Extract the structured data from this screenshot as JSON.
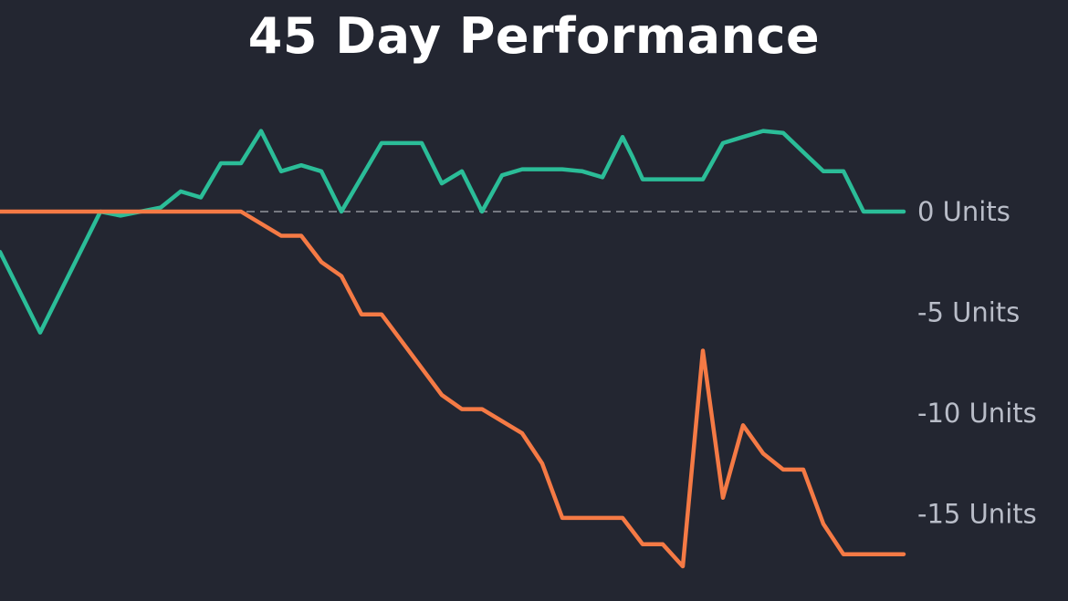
{
  "chart_data": {
    "type": "line",
    "title": "45 Day Performance",
    "xlabel": "",
    "ylabel": "",
    "ylim": [
      -19,
      4.1
    ],
    "xlim": [
      0,
      45
    ],
    "yticks": [
      {
        "value": 0,
        "label": "0 Units"
      },
      {
        "value": -5,
        "label": "-5 Units"
      },
      {
        "value": -10,
        "label": "-10 Units"
      },
      {
        "value": -15,
        "label": "-15 Units"
      }
    ],
    "reference_line": 0,
    "grid": false,
    "legend": "none",
    "series": [
      {
        "color": "#2bbd98",
        "x": [
          0,
          2,
          5,
          6,
          7,
          8,
          9,
          10,
          11,
          12,
          13,
          14,
          15,
          16,
          17,
          19,
          21,
          22,
          23,
          24,
          25,
          26,
          28,
          29,
          30,
          31,
          31.5,
          32,
          35,
          36,
          37,
          38,
          39,
          41,
          42,
          43,
          44,
          45
        ],
        "values": [
          -2.0,
          -6.0,
          0.0,
          -0.2,
          0.0,
          0.2,
          1.0,
          0.7,
          2.4,
          2.4,
          4.0,
          2.0,
          2.3,
          2.0,
          0.0,
          3.4,
          3.4,
          1.4,
          2.0,
          0.0,
          1.8,
          2.1,
          2.1,
          2.0,
          1.7,
          3.7,
          2.7,
          1.6,
          1.6,
          3.4,
          3.7,
          4.0,
          3.9,
          2.0,
          2.0,
          0.0,
          0.0,
          0.0
        ]
      },
      {
        "color": "#f57a45",
        "x": [
          0,
          12,
          14,
          15,
          16,
          17,
          18,
          19,
          22,
          23,
          24,
          26,
          27,
          28,
          29,
          31,
          32,
          33,
          34,
          35,
          36,
          37,
          38,
          39,
          40,
          41,
          42,
          45
        ],
        "values": [
          0.0,
          0.0,
          -1.2,
          -1.2,
          -2.5,
          -3.2,
          -5.1,
          -5.1,
          -9.1,
          -9.8,
          -9.8,
          -11.0,
          -12.5,
          -15.2,
          -15.2,
          -15.2,
          -16.5,
          -16.5,
          -17.6,
          -6.9,
          -14.2,
          -10.6,
          -12.0,
          -12.8,
          -12.8,
          -15.5,
          -17.0,
          -17.0
        ]
      }
    ]
  }
}
